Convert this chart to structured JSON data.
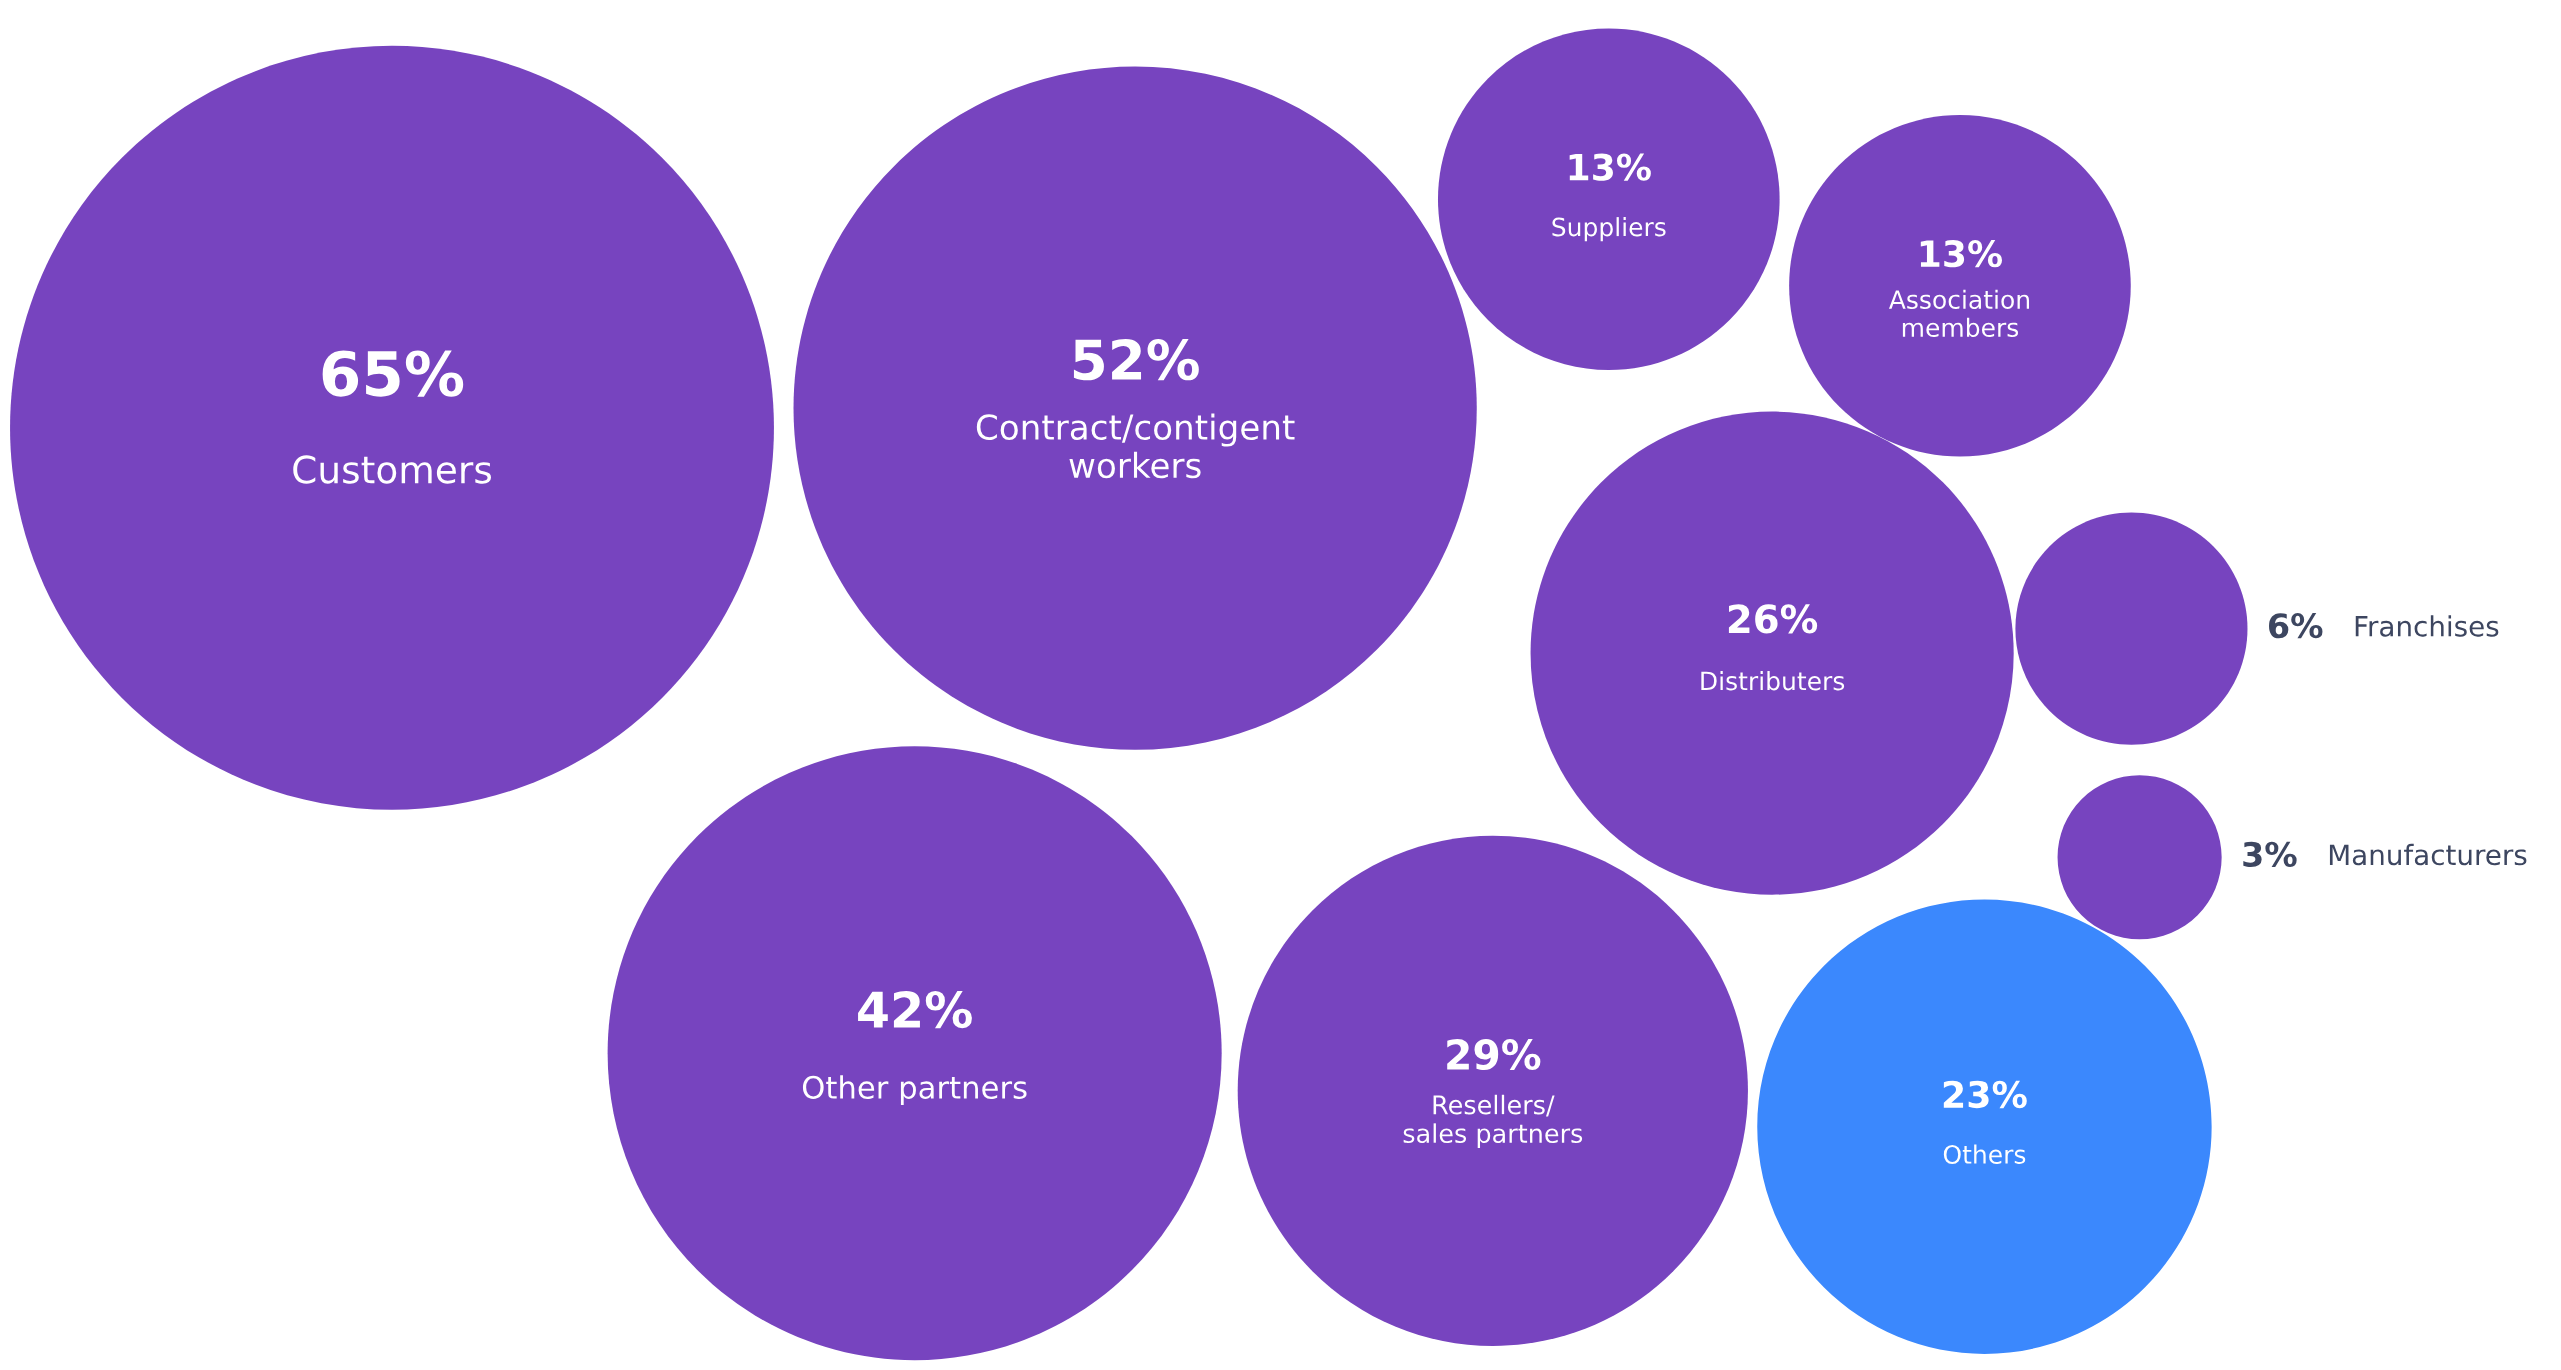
{
  "chart_data": {
    "type": "other",
    "categories": [
      "Customers",
      "Contract/contigent\nworkers",
      "Other partners",
      "Resellers/\nsales partners",
      "Distributers",
      "Others",
      "Suppliers",
      "Association\nmembers",
      "Franchises",
      "Manufacturers"
    ],
    "values": [
      65,
      52,
      42,
      29,
      26,
      23,
      13,
      13,
      6,
      3
    ],
    "value_labels": [
      "65%",
      "52%",
      "42%",
      "29%",
      "26%",
      "23%",
      "13%",
      "13%",
      "6%",
      "3%"
    ],
    "colors": [
      "#7744bf",
      "#7744bf",
      "#7744bf",
      "#7744bf",
      "#7744bf",
      "#3b88fd",
      "#7744bf",
      "#7744bf",
      "#7744bf",
      "#7744bf"
    ]
  }
}
